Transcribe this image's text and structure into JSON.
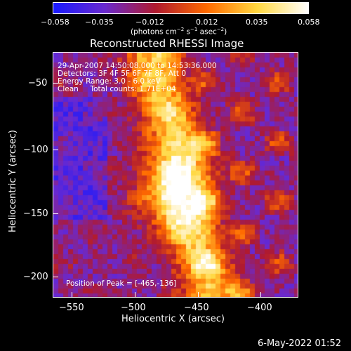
{
  "colorbar": {
    "tick_labels": [
      "−0.058",
      "−0.035",
      "−0.012",
      "0.012",
      "0.035",
      "0.058"
    ],
    "unit_label_main": "(photons cm",
    "unit_exp1": "−2",
    "unit_mid": " s",
    "unit_exp2": "−1",
    "unit_tail": " asec",
    "unit_exp3": "−2",
    "unit_close": ")",
    "colors": [
      "#1a1aff",
      "#6a2ad0",
      "#b01a30",
      "#ff6a00",
      "#ffd840",
      "#ffffff"
    ]
  },
  "title": "Reconstructed RHESSI Image",
  "info": {
    "line1": "29-Apr-2007 14:50:08.000 to 14:53:36.000",
    "line2": "Detectors: 3F 4F 5F 6F 7F 8F, Att 0",
    "line3": "Energy Range: 3.0 - 6.0 keV",
    "line4": "Clean     Total counts: 1.71E+04",
    "peak": "Position of Peak = [-465,-136]"
  },
  "axes": {
    "x_title": "Heliocentric X (arcsec)",
    "y_title": "Heliocentric Y (arcsec)",
    "x_ticks": [
      "−550",
      "−500",
      "−450",
      "−400"
    ],
    "y_ticks": [
      "−50",
      "−100",
      "−150",
      "−200"
    ]
  },
  "timestamp": "6-May-2022 01:52",
  "chart_data": {
    "type": "heatmap",
    "title": "Reconstructed RHESSI Image",
    "xlabel": "Heliocentric X (arcsec)",
    "ylabel": "Heliocentric Y (arcsec)",
    "xlim": [
      -565,
      -370
    ],
    "ylim": [
      -220,
      -25
    ],
    "x_ticks": [
      -550,
      -500,
      -450,
      -400
    ],
    "y_ticks": [
      -50,
      -100,
      -150,
      -200
    ],
    "colorbar_range": [
      -0.058,
      0.058
    ],
    "colorbar_label": "(photons cm^-2 s^-1 asec^-2)",
    "peak_position": [
      -465,
      -136
    ],
    "ridge": [
      [
        -485,
        -30
      ],
      [
        -478,
        -60
      ],
      [
        -470,
        -85
      ],
      [
        -463,
        -100
      ],
      [
        -466,
        -125
      ],
      [
        -465,
        -136
      ],
      [
        -458,
        -160
      ],
      [
        -448,
        -185
      ],
      [
        -438,
        -215
      ]
    ],
    "colormap": [
      "#1a1aff",
      "#6a2ad0",
      "#b01a30",
      "#ff6a00",
      "#ffd840",
      "#ffffff"
    ]
  }
}
